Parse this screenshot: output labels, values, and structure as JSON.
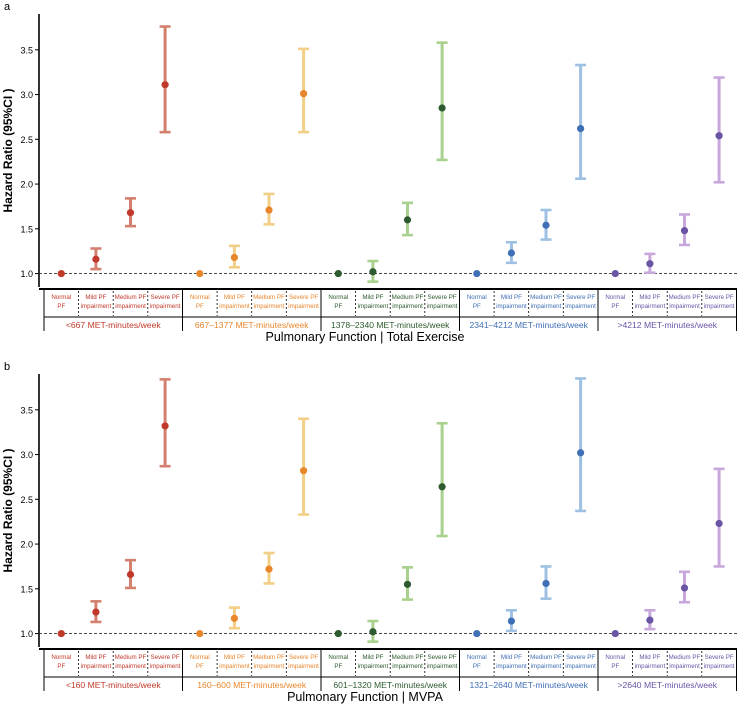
{
  "chart_data": [
    {
      "panel": "a",
      "type": "forest",
      "ylabel": "Hazard Ratio (95%CI )",
      "xlabel": "Pulmonary Function | Total Exercise",
      "ylim": [
        0.85,
        3.9
      ],
      "yticks": [
        "1.0",
        "1.5",
        "2.0",
        "2.5",
        "3.0",
        "3.5"
      ],
      "reference_line": 1.0,
      "sub_labels": [
        [
          "Normal",
          "PF"
        ],
        [
          "Mild PF",
          "impairment"
        ],
        [
          "Medium PF",
          "impairment"
        ],
        [
          "Severe PF",
          "impairment"
        ]
      ],
      "groups": [
        {
          "name": "<667 MET-minutes/week",
          "color": "#c0392b",
          "light": "#d4806f",
          "points": [
            {
              "hr": 1.0,
              "lo": 1.0,
              "hi": 1.0
            },
            {
              "hr": 1.16,
              "lo": 1.05,
              "hi": 1.28
            },
            {
              "hr": 1.68,
              "lo": 1.53,
              "hi": 1.84
            },
            {
              "hr": 3.11,
              "lo": 2.58,
              "hi": 3.76
            }
          ]
        },
        {
          "name": "667–1377 MET-minutes/week",
          "color": "#e8862c",
          "light": "#f2cf86",
          "points": [
            {
              "hr": 1.0,
              "lo": 1.0,
              "hi": 1.0
            },
            {
              "hr": 1.18,
              "lo": 1.07,
              "hi": 1.31
            },
            {
              "hr": 1.71,
              "lo": 1.55,
              "hi": 1.89
            },
            {
              "hr": 3.01,
              "lo": 2.58,
              "hi": 3.51
            }
          ]
        },
        {
          "name": "1378–2340 MET-minutes/week",
          "color": "#2d5a2e",
          "light": "#a9d18e",
          "points": [
            {
              "hr": 1.0,
              "lo": 1.0,
              "hi": 1.0
            },
            {
              "hr": 1.02,
              "lo": 0.91,
              "hi": 1.14
            },
            {
              "hr": 1.6,
              "lo": 1.43,
              "hi": 1.79
            },
            {
              "hr": 2.85,
              "lo": 2.27,
              "hi": 3.58
            }
          ]
        },
        {
          "name": "2341–4212 MET-minutes/week",
          "color": "#3f6fb5",
          "light": "#9ec1e3",
          "points": [
            {
              "hr": 1.0,
              "lo": 1.0,
              "hi": 1.0
            },
            {
              "hr": 1.23,
              "lo": 1.12,
              "hi": 1.35
            },
            {
              "hr": 1.54,
              "lo": 1.38,
              "hi": 1.71
            },
            {
              "hr": 2.62,
              "lo": 2.06,
              "hi": 3.33
            }
          ]
        },
        {
          "name": ">4212 MET-minutes/week",
          "color": "#6a55a5",
          "light": "#c8a8dc",
          "points": [
            {
              "hr": 1.0,
              "lo": 1.0,
              "hi": 1.0
            },
            {
              "hr": 1.11,
              "lo": 1.01,
              "hi": 1.22
            },
            {
              "hr": 1.48,
              "lo": 1.32,
              "hi": 1.66
            },
            {
              "hr": 2.54,
              "lo": 2.02,
              "hi": 3.19
            }
          ]
        }
      ]
    },
    {
      "panel": "b",
      "type": "forest",
      "ylabel": "Hazard Ratio (95%CI )",
      "xlabel": "Pulmonary Function | MVPA",
      "ylim": [
        0.85,
        3.9
      ],
      "yticks": [
        "1.0",
        "1.5",
        "2.0",
        "2.5",
        "3.0",
        "3.5"
      ],
      "reference_line": 1.0,
      "sub_labels": [
        [
          "Normal",
          "PF"
        ],
        [
          "Mild PF",
          "impairment"
        ],
        [
          "Medium PF",
          "impairment"
        ],
        [
          "Severe PF",
          "impairment"
        ]
      ],
      "groups": [
        {
          "name": "<160 MET-minutes/week",
          "color": "#c0392b",
          "light": "#d4806f",
          "points": [
            {
              "hr": 1.0,
              "lo": 1.0,
              "hi": 1.0
            },
            {
              "hr": 1.24,
              "lo": 1.13,
              "hi": 1.36
            },
            {
              "hr": 1.66,
              "lo": 1.51,
              "hi": 1.82
            },
            {
              "hr": 3.32,
              "lo": 2.87,
              "hi": 3.84
            }
          ]
        },
        {
          "name": "160–600 MET-minutes/week",
          "color": "#e8862c",
          "light": "#f2cf86",
          "points": [
            {
              "hr": 1.0,
              "lo": 1.0,
              "hi": 1.0
            },
            {
              "hr": 1.17,
              "lo": 1.06,
              "hi": 1.29
            },
            {
              "hr": 1.72,
              "lo": 1.56,
              "hi": 1.9
            },
            {
              "hr": 2.82,
              "lo": 2.33,
              "hi": 3.4
            }
          ]
        },
        {
          "name": "601–1320 MET-minutes/week",
          "color": "#2d5a2e",
          "light": "#a9d18e",
          "points": [
            {
              "hr": 1.0,
              "lo": 1.0,
              "hi": 1.0
            },
            {
              "hr": 1.02,
              "lo": 0.91,
              "hi": 1.14
            },
            {
              "hr": 1.55,
              "lo": 1.38,
              "hi": 1.74
            },
            {
              "hr": 2.64,
              "lo": 2.09,
              "hi": 3.35
            }
          ]
        },
        {
          "name": "1321–2640 MET-minutes/week",
          "color": "#3f6fb5",
          "light": "#9ec1e3",
          "points": [
            {
              "hr": 1.0,
              "lo": 1.0,
              "hi": 1.0
            },
            {
              "hr": 1.14,
              "lo": 1.03,
              "hi": 1.26
            },
            {
              "hr": 1.56,
              "lo": 1.39,
              "hi": 1.75
            },
            {
              "hr": 3.02,
              "lo": 2.37,
              "hi": 3.85
            }
          ]
        },
        {
          "name": ">2640 MET-minutes/week",
          "color": "#6a55a5",
          "light": "#c8a8dc",
          "points": [
            {
              "hr": 1.0,
              "lo": 1.0,
              "hi": 1.0
            },
            {
              "hr": 1.15,
              "lo": 1.05,
              "hi": 1.26
            },
            {
              "hr": 1.51,
              "lo": 1.35,
              "hi": 1.69
            },
            {
              "hr": 2.23,
              "lo": 1.75,
              "hi": 2.84
            }
          ]
        }
      ]
    }
  ]
}
